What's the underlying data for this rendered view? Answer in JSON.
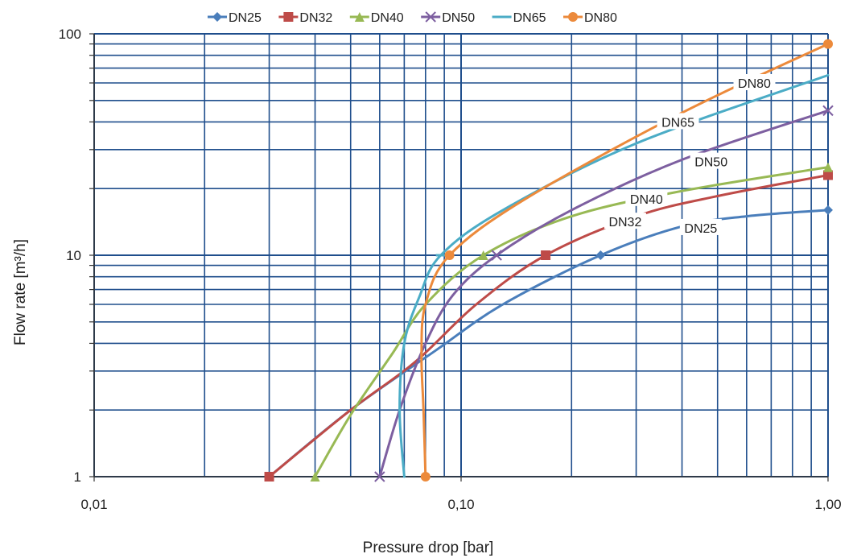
{
  "chart_data": {
    "type": "line",
    "xlabel": "Pressure drop [bar]",
    "ylabel": "Flow rate  [m³/h]",
    "x_scale": "log",
    "y_scale": "log",
    "xlim": [
      0.01,
      1.0
    ],
    "ylim": [
      1,
      100
    ],
    "x_ticks": [
      {
        "value": 0.01,
        "label": "0,01"
      },
      {
        "value": 0.1,
        "label": "0,10"
      },
      {
        "value": 1.0,
        "label": "1,00"
      }
    ],
    "y_ticks": [
      {
        "value": 1,
        "label": "1"
      },
      {
        "value": 10,
        "label": "10"
      },
      {
        "value": 100,
        "label": "100"
      }
    ],
    "grid": true,
    "legend_position": "top",
    "series": [
      {
        "name": "DN25",
        "color": "#4A7EBB",
        "marker": "diamond",
        "points": [
          [
            0.03,
            1
          ],
          [
            0.05,
            2
          ],
          [
            0.085,
            3.7
          ],
          [
            0.13,
            6
          ],
          [
            0.24,
            10
          ],
          [
            0.4,
            13.5
          ],
          [
            0.6,
            15
          ],
          [
            1.0,
            16
          ]
        ],
        "marker_points": [
          [
            0.24,
            10
          ],
          [
            1.0,
            16
          ]
        ],
        "label": {
          "text": "DN25",
          "x": 0.45,
          "y": 13.3
        }
      },
      {
        "name": "DN32",
        "color": "#BE4B48",
        "marker": "square",
        "points": [
          [
            0.03,
            1
          ],
          [
            0.05,
            2
          ],
          [
            0.075,
            3.3
          ],
          [
            0.11,
            6
          ],
          [
            0.17,
            10
          ],
          [
            0.3,
            15
          ],
          [
            0.5,
            18.5
          ],
          [
            1.0,
            23
          ]
        ],
        "marker_points": [
          [
            0.03,
            1
          ],
          [
            0.17,
            10
          ],
          [
            1.0,
            23
          ]
        ],
        "label": {
          "text": "DN32",
          "x": 0.28,
          "y": 14.2
        }
      },
      {
        "name": "DN40",
        "color": "#98B954",
        "marker": "triangle",
        "points": [
          [
            0.04,
            1
          ],
          [
            0.05,
            1.9
          ],
          [
            0.065,
            3.6
          ],
          [
            0.08,
            6
          ],
          [
            0.115,
            10
          ],
          [
            0.2,
            15
          ],
          [
            0.4,
            19.5
          ],
          [
            1.0,
            25
          ]
        ],
        "marker_points": [
          [
            0.04,
            1
          ],
          [
            0.115,
            10
          ],
          [
            1.0,
            25
          ]
        ],
        "label": {
          "text": "DN40",
          "x": 0.32,
          "y": 18
        }
      },
      {
        "name": "DN50",
        "color": "#7D5FA0",
        "marker": "x",
        "points": [
          [
            0.06,
            1
          ],
          [
            0.068,
            2
          ],
          [
            0.08,
            4
          ],
          [
            0.095,
            6.6
          ],
          [
            0.125,
            10
          ],
          [
            0.2,
            16
          ],
          [
            0.4,
            27
          ],
          [
            1.0,
            45
          ]
        ],
        "marker_points": [
          [
            0.06,
            1
          ],
          [
            0.125,
            10
          ],
          [
            1.0,
            45
          ]
        ],
        "label": {
          "text": "DN50",
          "x": 0.48,
          "y": 26.5
        }
      },
      {
        "name": "DN65",
        "color": "#4BACC6",
        "marker": "dash",
        "points": [
          [
            0.07,
            1
          ],
          [
            0.068,
            2
          ],
          [
            0.07,
            4
          ],
          [
            0.077,
            6.5
          ],
          [
            0.088,
            10
          ],
          [
            0.13,
            16
          ],
          [
            0.3,
            32
          ],
          [
            1.0,
            65
          ]
        ],
        "marker_points": [
          [
            0.088,
            10
          ]
        ],
        "label": {
          "text": "DN65",
          "x": 0.39,
          "y": 40
        }
      },
      {
        "name": "DN80",
        "color": "#EC8A3B",
        "marker": "circle",
        "points": [
          [
            0.08,
            1
          ],
          [
            0.079,
            2
          ],
          [
            0.078,
            3.6
          ],
          [
            0.08,
            6
          ],
          [
            0.093,
            10
          ],
          [
            0.15,
            18
          ],
          [
            0.4,
            44
          ],
          [
            1.0,
            90
          ]
        ],
        "marker_points": [
          [
            0.08,
            1
          ],
          [
            0.093,
            10
          ],
          [
            1.0,
            90
          ]
        ],
        "label": {
          "text": "DN80",
          "x": 0.63,
          "y": 60
        }
      }
    ]
  }
}
